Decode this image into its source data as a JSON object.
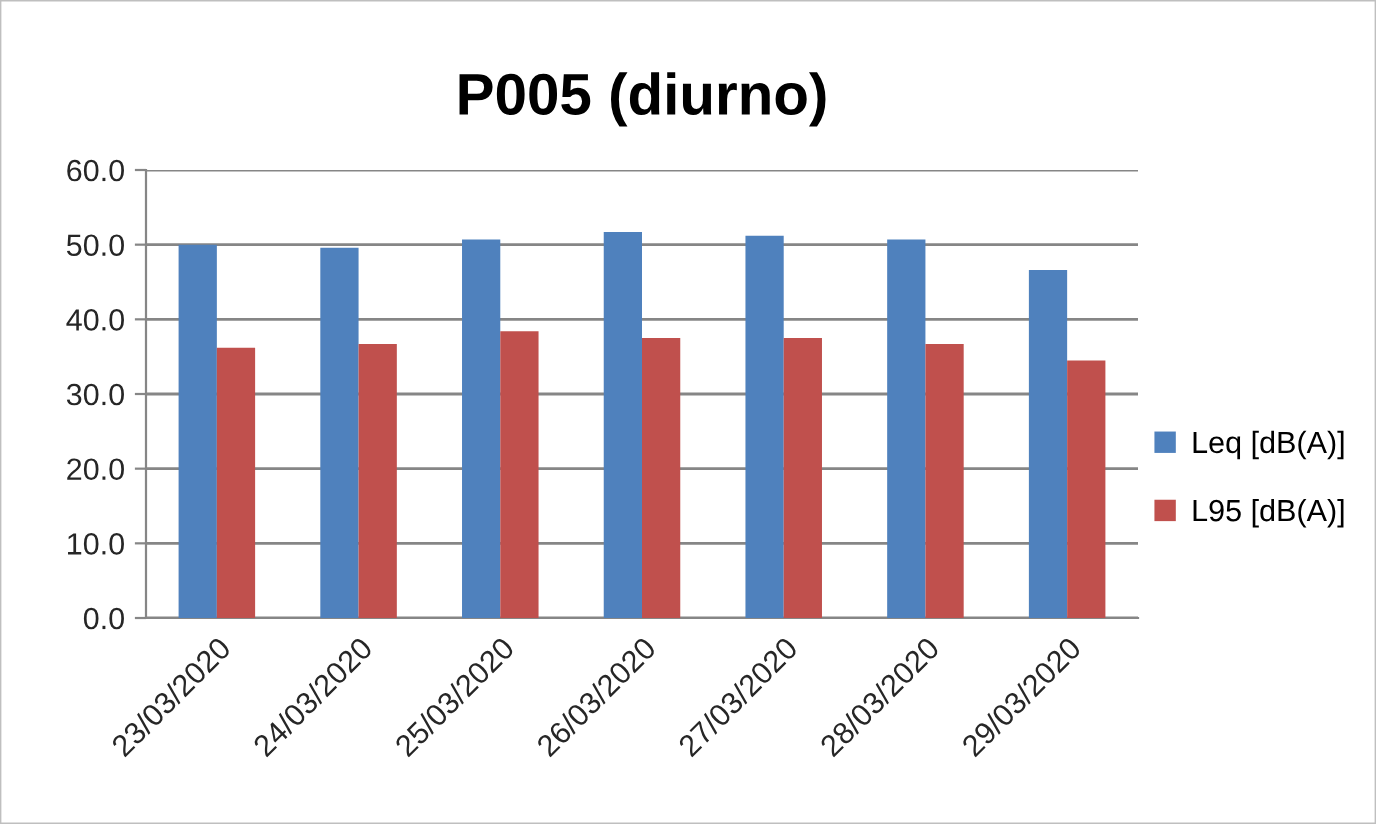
{
  "chart_data": {
    "type": "bar",
    "title": "P005 (diurno)",
    "categories": [
      "23/03/2020",
      "24/03/2020",
      "25/03/2020",
      "26/03/2020",
      "27/03/2020",
      "28/03/2020",
      "29/03/2020"
    ],
    "series": [
      {
        "name": "Leq [dB(A)]",
        "color": "#4f81bd",
        "values": [
          50.0,
          49.6,
          50.7,
          51.7,
          51.2,
          50.7,
          46.6
        ]
      },
      {
        "name": "L95 [dB(A)]",
        "color": "#c0504d",
        "values": [
          36.2,
          36.7,
          38.4,
          37.5,
          37.5,
          36.7,
          34.5
        ]
      }
    ],
    "ylim": [
      0,
      60
    ],
    "yticks": [
      {
        "value": 0,
        "label": "0.0"
      },
      {
        "value": 10,
        "label": "10.0"
      },
      {
        "value": 20,
        "label": "20.0"
      },
      {
        "value": 30,
        "label": "30.0"
      },
      {
        "value": 40,
        "label": "40.0"
      },
      {
        "value": 50,
        "label": "50.0"
      },
      {
        "value": 60,
        "label": "60.0"
      }
    ],
    "grid": "y",
    "legend": "right"
  }
}
